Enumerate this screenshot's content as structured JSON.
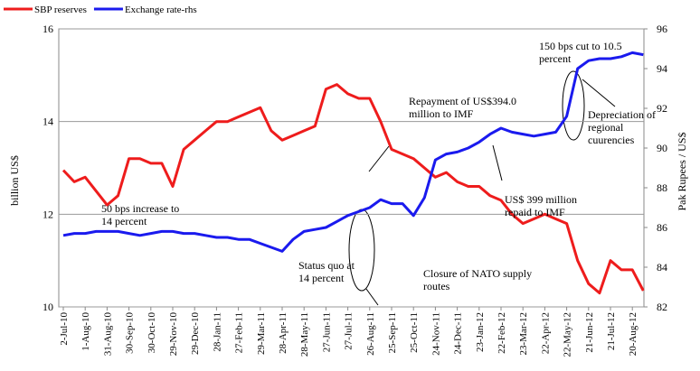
{
  "chart_data": {
    "type": "line",
    "y_label": "billion US$",
    "y2_label": "Pak Rupees / US$",
    "categories": [
      "2-Jul-10",
      null,
      "1-Aug-10",
      null,
      "31-Aug-10",
      null,
      "30-Sep-10",
      null,
      "30-Oct-10",
      null,
      "29-Nov-10",
      null,
      "29-Dec-10",
      null,
      "28-Jan-11",
      null,
      "27-Feb-11",
      null,
      "29-Mar-11",
      null,
      "28-Apr-11",
      null,
      "28-May-11",
      null,
      "27-Jun-11",
      null,
      "27-Jul-11",
      null,
      "26-Aug-11",
      null,
      "25-Sep-11",
      null,
      "25-Oct-11",
      null,
      "24-Nov-11",
      null,
      "24-Dec-11",
      null,
      "23-Jan-12",
      null,
      "22-Feb-12",
      null,
      "23-Mar-12",
      null,
      "22-Apr-12",
      null,
      "22-May-12",
      null,
      "21-Jun-12",
      null,
      "21-Jul-12",
      null,
      "20-Aug-12",
      null
    ],
    "series": [
      {
        "name": "SBP reserves",
        "color": "#ee1c1c",
        "values": [
          12.95,
          12.7,
          12.8,
          12.5,
          12.2,
          12.4,
          13.2,
          13.2,
          13.1,
          13.1,
          12.6,
          13.4,
          13.6,
          13.8,
          14.0,
          14.0,
          14.1,
          14.2,
          14.3,
          13.8,
          13.6,
          13.7,
          13.8,
          13.9,
          14.7,
          14.8,
          14.6,
          14.5,
          14.5,
          14.0,
          13.4,
          13.3,
          13.2,
          13.0,
          12.8,
          12.9,
          12.7,
          12.6,
          12.6,
          12.4,
          12.3,
          12.0,
          11.8,
          11.9,
          12.0,
          11.9,
          11.8,
          11.0,
          10.5,
          10.3,
          11.0,
          10.8,
          10.8,
          10.35
        ]
      },
      {
        "name": "Exchange rate-rhs",
        "color": "#1a1aee",
        "axis": "y2",
        "values": [
          85.6,
          85.7,
          85.7,
          85.8,
          85.8,
          85.8,
          85.7,
          85.6,
          85.7,
          85.8,
          85.8,
          85.7,
          85.7,
          85.6,
          85.5,
          85.5,
          85.4,
          85.4,
          85.2,
          85.0,
          84.8,
          85.4,
          85.8,
          85.9,
          86.0,
          86.3,
          86.6,
          86.8,
          87.0,
          87.4,
          87.2,
          87.2,
          86.6,
          87.5,
          89.4,
          89.7,
          89.8,
          90.0,
          90.3,
          90.7,
          91.0,
          90.8,
          90.7,
          90.6,
          90.7,
          90.8,
          91.6,
          94.0,
          94.4,
          94.5,
          94.5,
          94.6,
          94.8,
          94.7
        ]
      }
    ],
    "ylim": [
      10,
      16
    ],
    "yticks": [
      10,
      12,
      14,
      16
    ],
    "y2lim": [
      82,
      96
    ],
    "y2ticks": [
      82,
      84,
      86,
      88,
      90,
      92,
      94,
      96
    ],
    "grid": true,
    "annotations": [
      [
        "50 bps increase to",
        "14 percent"
      ],
      [
        "Status quo at",
        "14 percent"
      ],
      [
        "Closure of NATO supply",
        "routes"
      ],
      [
        "Repayment of US$394.0",
        "million to IMF"
      ],
      [
        "US$ 399 million",
        "repaid to IMF"
      ],
      [
        "150 bps cut to 10.5",
        "percent"
      ],
      [
        "Depreciation of",
        "regional",
        "cuurencies"
      ]
    ]
  }
}
